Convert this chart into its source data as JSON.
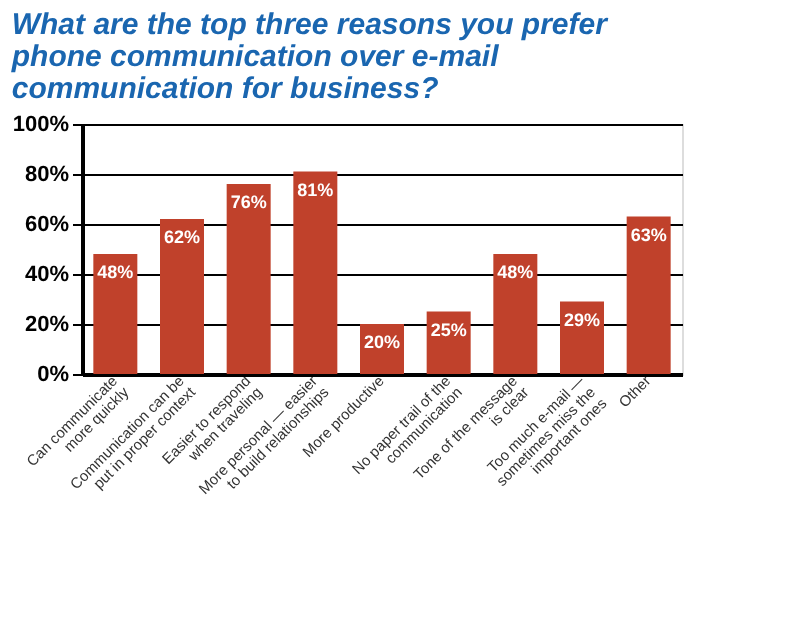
{
  "chart_data": {
    "type": "bar",
    "title": "What are the top three reasons you prefer phone communication over e-mail communication for business?",
    "categories": [
      "Can communicate\nmore quickly",
      "Communication can be\nput in proper context",
      "Easier to respond\nwhen traveling",
      "More personal — easier\nto build relationships",
      "More productive",
      "No paper trail of the\ncommunication",
      "Tone of the message\nis clear",
      "Too much e-mail —\nsometimes miss the\nimportant ones",
      "Other"
    ],
    "values": [
      48,
      62,
      76,
      81,
      20,
      25,
      48,
      29,
      63
    ],
    "value_labels": [
      "48%",
      "62%",
      "76%",
      "81%",
      "20%",
      "25%",
      "48%",
      "29%",
      "63%"
    ],
    "color": "#c0412b",
    "ylim": [
      0,
      100
    ],
    "yticks": [
      {
        "value": 0,
        "label": "0%"
      },
      {
        "value": 20,
        "label": "20%"
      },
      {
        "value": 40,
        "label": "40%"
      },
      {
        "value": 60,
        "label": "60%"
      },
      {
        "value": 80,
        "label": "80%"
      },
      {
        "value": 100,
        "label": "100%"
      }
    ],
    "grid": "y"
  }
}
